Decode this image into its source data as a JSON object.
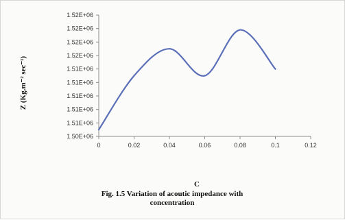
{
  "chart_data": {
    "type": "line",
    "title": "",
    "xlabel": "C",
    "ylabel": "Z (Kg.m⁻² sec⁻¹)",
    "caption": [
      "Fig. 1.5 Variation of acoutic impedance with",
      "concentration"
    ],
    "x_ticks": [
      "0",
      "0.02",
      "0.04",
      "0.06",
      "0.08",
      "0.1",
      "0.12"
    ],
    "xlim": [
      0,
      0.12
    ],
    "y_ticks": [
      "1.50E+06",
      "1.51E+06",
      "1.51E+06",
      "1.51E+06",
      "1.51E+06",
      "1.51E+06",
      "1.52E+06",
      "1.52E+06",
      "1.52E+06",
      "1.52E+06"
    ],
    "y_tick_values": [
      1500000.0,
      1501000.0,
      1502000.0,
      1503000.0,
      1504000.0,
      1505000.0,
      1506000.0,
      1507000.0,
      1508000.0,
      1509000.0
    ],
    "ylim": [
      1500000.0,
      1509000.0
    ],
    "grid": false,
    "legend": "none",
    "series_color": "#5b6fb8",
    "series": [
      {
        "x": [
          0,
          0.02,
          0.04,
          0.06,
          0.08,
          0.1
        ],
        "y": [
          1500500.0,
          1504500.0,
          1506500.0,
          1504500.0,
          1507900.0,
          1505000.0
        ]
      }
    ]
  }
}
